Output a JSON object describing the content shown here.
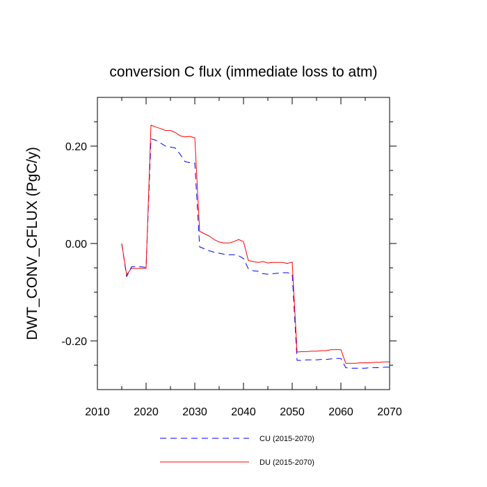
{
  "chart_data": {
    "type": "line",
    "title": "conversion C flux (immediate loss to atm)",
    "xlabel": "",
    "ylabel": "DWT_CONV_CFLUX  (PgC/y)",
    "xlim": [
      2010,
      2070
    ],
    "ylim": [
      -0.3,
      0.3
    ],
    "x_ticks": [
      2010,
      2020,
      2030,
      2040,
      2050,
      2060,
      2070
    ],
    "x_tick_labels": [
      "2010",
      "2020",
      "2030",
      "2040",
      "2050",
      "2060",
      "2070"
    ],
    "y_ticks": [
      -0.2,
      0.0,
      0.2
    ],
    "y_tick_labels": [
      "-0.20",
      "0.00",
      "0.20"
    ],
    "grid": false,
    "legend_position": "bottom",
    "series": [
      {
        "name": "CU (2015-2070)",
        "color": "#0000ff",
        "style": "dashed",
        "x": [
          2015,
          2016,
          2017,
          2018,
          2019,
          2020,
          2021,
          2022,
          2023,
          2024,
          2025,
          2026,
          2027,
          2028,
          2029,
          2030,
          2031,
          2032,
          2033,
          2034,
          2035,
          2036,
          2037,
          2038,
          2039,
          2040,
          2041,
          2042,
          2043,
          2044,
          2045,
          2046,
          2047,
          2048,
          2049,
          2050,
          2051,
          2052,
          2053,
          2054,
          2055,
          2056,
          2057,
          2058,
          2059,
          2060,
          2061,
          2062,
          2063,
          2064,
          2065,
          2066,
          2067,
          2068,
          2069,
          2070
        ],
        "y": [
          0.0,
          -0.068,
          -0.048,
          -0.047,
          -0.048,
          -0.049,
          0.215,
          0.212,
          0.206,
          0.2,
          0.198,
          0.196,
          0.183,
          0.168,
          0.166,
          0.165,
          -0.007,
          -0.011,
          -0.015,
          -0.018,
          -0.02,
          -0.022,
          -0.023,
          -0.023,
          -0.025,
          -0.031,
          -0.052,
          -0.056,
          -0.057,
          -0.062,
          -0.063,
          -0.062,
          -0.061,
          -0.06,
          -0.06,
          -0.062,
          -0.24,
          -0.24,
          -0.239,
          -0.239,
          -0.239,
          -0.238,
          -0.238,
          -0.237,
          -0.236,
          -0.236,
          -0.255,
          -0.256,
          -0.256,
          -0.256,
          -0.256,
          -0.255,
          -0.255,
          -0.255,
          -0.254,
          -0.254
        ]
      },
      {
        "name": "DU (2015-2070)",
        "color": "#ff0000",
        "style": "solid",
        "x": [
          2015,
          2016,
          2017,
          2018,
          2019,
          2020,
          2021,
          2022,
          2023,
          2024,
          2025,
          2026,
          2027,
          2028,
          2029,
          2030,
          2031,
          2032,
          2033,
          2034,
          2035,
          2036,
          2037,
          2038,
          2039,
          2040,
          2041,
          2042,
          2043,
          2044,
          2045,
          2046,
          2047,
          2048,
          2049,
          2050,
          2051,
          2052,
          2053,
          2054,
          2055,
          2056,
          2057,
          2058,
          2059,
          2060,
          2061,
          2062,
          2063,
          2064,
          2065,
          2066,
          2067,
          2068,
          2069,
          2070
        ],
        "y": [
          0.0,
          -0.064,
          -0.051,
          -0.051,
          -0.051,
          -0.051,
          0.243,
          0.239,
          0.236,
          0.232,
          0.232,
          0.228,
          0.221,
          0.219,
          0.22,
          0.217,
          0.025,
          0.02,
          0.015,
          0.008,
          0.003,
          0.001,
          0.001,
          0.004,
          0.008,
          0.004,
          -0.035,
          -0.037,
          -0.039,
          -0.037,
          -0.04,
          -0.039,
          -0.039,
          -0.039,
          -0.041,
          -0.038,
          -0.223,
          -0.222,
          -0.222,
          -0.221,
          -0.221,
          -0.22,
          -0.22,
          -0.218,
          -0.218,
          -0.218,
          -0.246,
          -0.246,
          -0.246,
          -0.245,
          -0.245,
          -0.245,
          -0.244,
          -0.244,
          -0.243,
          -0.243
        ]
      }
    ]
  }
}
